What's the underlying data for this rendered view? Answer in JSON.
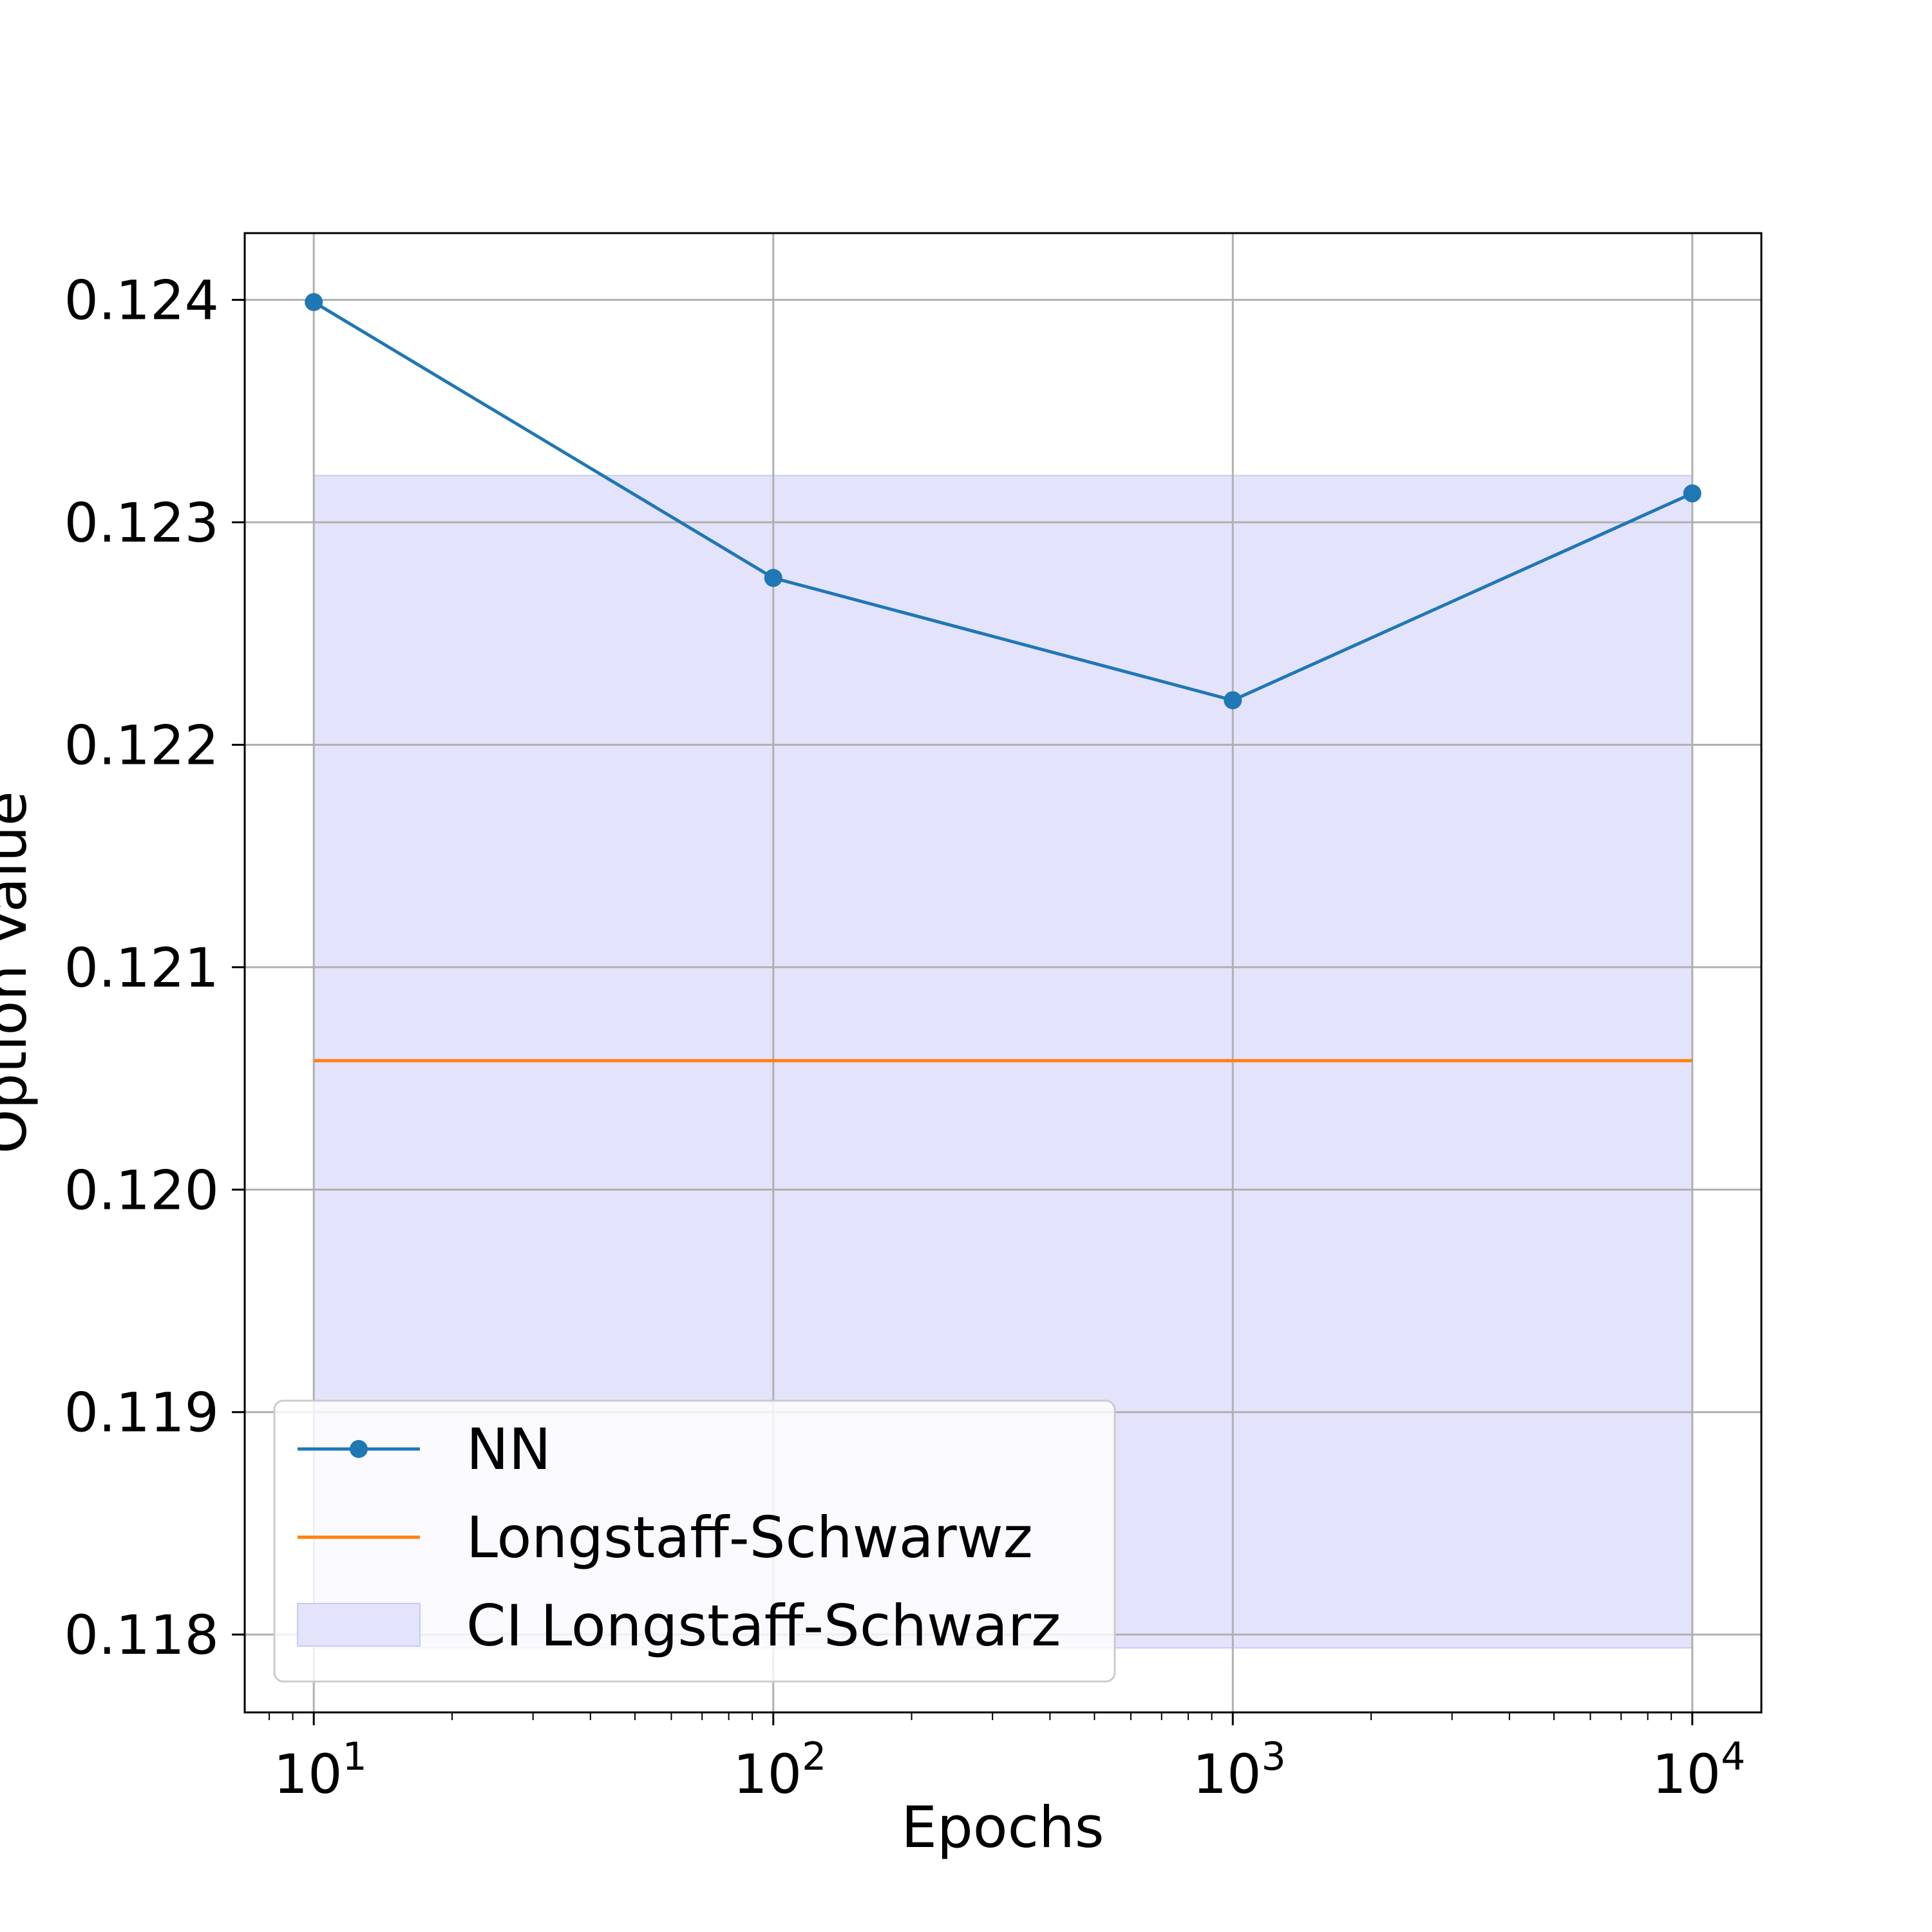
{
  "chart_data": {
    "type": "line",
    "xscale": "log",
    "x": [
      10,
      100,
      1000,
      10000
    ],
    "x_ticks": [
      {
        "value": 10,
        "base": "10",
        "exp": "1"
      },
      {
        "value": 100,
        "base": "10",
        "exp": "2"
      },
      {
        "value": 1000,
        "base": "10",
        "exp": "3"
      },
      {
        "value": 10000,
        "base": "10",
        "exp": "4"
      }
    ],
    "y_ticks": [
      "0.118",
      "0.119",
      "0.120",
      "0.121",
      "0.122",
      "0.123",
      "0.124"
    ],
    "ylim": [
      0.11765,
      0.1243
    ],
    "xlabel": "Epochs",
    "ylabel": "Option Value",
    "grid": true,
    "legend_position": "lower-left",
    "series": [
      {
        "name": "NN",
        "kind": "line-marker",
        "color": "#1f77b4",
        "values": [
          0.12399,
          0.12275,
          0.1222,
          0.12313
        ]
      },
      {
        "name": "Longstaff-Schwarwz",
        "kind": "line",
        "color": "#ff7f0e",
        "values": [
          0.12058,
          0.12058,
          0.12058,
          0.12058
        ]
      },
      {
        "name": "CI Longstaff-Schwarz",
        "kind": "band",
        "color": "#e3e3fb",
        "lower": 0.11794,
        "upper": 0.12321
      }
    ]
  }
}
